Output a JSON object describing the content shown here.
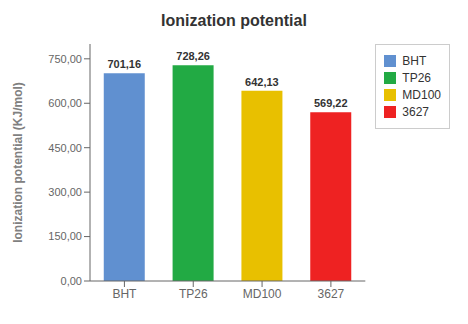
{
  "chart_data": {
    "type": "bar",
    "title": "Ionization potential",
    "ylabel": "Ionization potential (KJ/mol)",
    "categories": [
      "BHT",
      "TP26",
      "MD100",
      "3627"
    ],
    "values": [
      701.16,
      728.26,
      642.13,
      569.22
    ],
    "value_labels": [
      "701,16",
      "728,26",
      "642,13",
      "569,22"
    ],
    "colors": [
      "#6090D0",
      "#22AA44",
      "#E8C000",
      "#EE2222"
    ],
    "ylim": [
      0,
      800
    ],
    "yticks": [
      {
        "value": 0,
        "label": "0,00"
      },
      {
        "value": 150,
        "label": "150,00"
      },
      {
        "value": 300,
        "label": "300,00"
      },
      {
        "value": 450,
        "label": "450,00"
      },
      {
        "value": 600,
        "label": "600,00"
      },
      {
        "value": 750,
        "label": "750,00"
      }
    ],
    "data_labels": true,
    "legend": "upper right",
    "grid": false
  }
}
